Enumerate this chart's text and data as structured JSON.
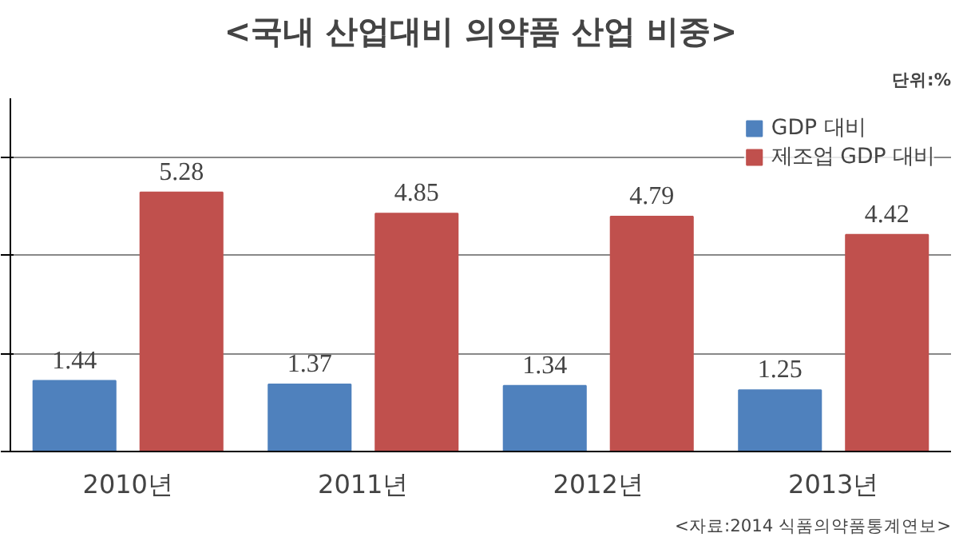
{
  "chart_data": {
    "type": "bar",
    "title": "<국내 산업대비 의약품 산업 비중>",
    "categories": [
      "2010년",
      "2011년",
      "2012년",
      "2013년"
    ],
    "series": [
      {
        "name": "GDP 대비",
        "color": "#4f81bd",
        "values": [
          1.44,
          1.37,
          1.34,
          1.25
        ]
      },
      {
        "name": "제조업 GDP 대비",
        "color": "#c0504d",
        "values": [
          5.28,
          4.85,
          4.79,
          4.42
        ]
      }
    ],
    "data_labels": true,
    "ylim": [
      0,
      7.2
    ],
    "yticks": [
      {
        "value": 0,
        "label": null
      },
      {
        "value": 2,
        "label": null
      },
      {
        "value": 4,
        "label": null
      },
      {
        "value": 6,
        "label": null
      }
    ],
    "tick_labels": "x",
    "grid": "y",
    "legend": "top right",
    "annotations": [
      "단위:%",
      "<자료:2014 식품의약품통계연보>"
    ]
  }
}
